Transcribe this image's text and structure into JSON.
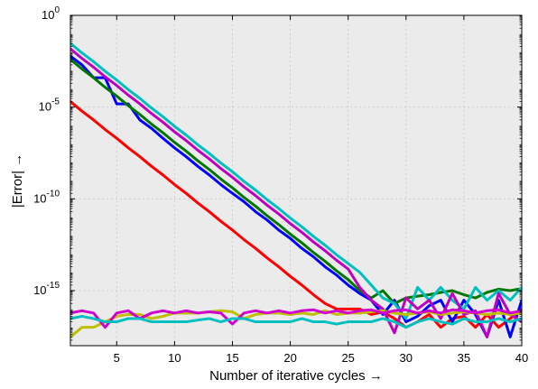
{
  "chart_data": {
    "type": "line",
    "title": "",
    "xlabel": "Number of iterative cycles →",
    "ylabel": "|Error| →",
    "xlim": [
      1,
      40
    ],
    "ylim": [
      1e-18,
      1
    ],
    "yscale": "log",
    "grid": true,
    "background": "#ebebeb",
    "x_ticks": [
      5,
      10,
      15,
      20,
      25,
      30,
      35,
      40
    ],
    "x_tick_labels": [
      "5",
      "10",
      "15",
      "20",
      "25",
      "30",
      "35",
      "40"
    ],
    "y_ticks": [
      1,
      1e-05,
      1e-10,
      1e-15
    ],
    "y_tick_labels": [
      {
        "base": "10",
        "exp": "0"
      },
      {
        "base": "10",
        "exp": "-5"
      },
      {
        "base": "10",
        "exp": "-10"
      },
      {
        "base": "10",
        "exp": "-15"
      }
    ],
    "x": [
      1,
      2,
      3,
      4,
      5,
      6,
      7,
      8,
      9,
      10,
      11,
      12,
      13,
      14,
      15,
      16,
      17,
      18,
      19,
      20,
      21,
      22,
      23,
      24,
      25,
      26,
      27,
      28,
      29,
      30,
      31,
      32,
      33,
      34,
      35,
      36,
      37,
      38,
      39,
      40
    ],
    "series": [
      {
        "color": "#ff0000",
        "values": [
          2e-05,
          6e-06,
          2e-06,
          6e-07,
          2e-07,
          6e-08,
          2e-08,
          6e-09,
          2e-09,
          6e-10,
          2e-10,
          6e-11,
          2e-11,
          6e-12,
          2e-12,
          6e-13,
          2e-13,
          6e-14,
          2e-14,
          6e-15,
          2e-15,
          6e-16,
          2e-16,
          1e-16,
          1e-16,
          1e-16,
          5e-17,
          7e-17,
          3e-17,
          1e-17,
          2e-17,
          5e-17,
          1e-17,
          3e-17,
          4e-17,
          1e-17,
          5e-17,
          1e-17,
          3e-17,
          1e-16
        ]
      },
      {
        "color": "#0000ff",
        "values": [
          0.006,
          0.002,
          0.0004,
          0.0004,
          1.5e-05,
          1.5e-05,
          2e-06,
          7e-07,
          2e-07,
          6e-08,
          2e-08,
          6e-09,
          2e-09,
          6e-10,
          2e-10,
          7e-11,
          2e-11,
          7e-12,
          2e-12,
          7e-13,
          2e-13,
          7e-14,
          2e-14,
          7e-15,
          2e-15,
          7e-16,
          3e-16,
          5e-17,
          3e-16,
          2e-17,
          4e-17,
          1.5e-16,
          3e-16,
          2e-17,
          3e-16,
          5e-17,
          3e-18,
          3e-16,
          3e-18,
          3e-16
        ]
      },
      {
        "color": "#007700",
        "values": [
          0.004,
          0.0012,
          0.0004,
          0.00012,
          4e-05,
          1.2e-05,
          4e-06,
          1.2e-06,
          4e-07,
          1.2e-07,
          4e-08,
          1.2e-08,
          4e-09,
          1.2e-09,
          4e-10,
          1.2e-10,
          4e-11,
          1.2e-11,
          4e-12,
          1.2e-12,
          4e-13,
          1.2e-13,
          4e-14,
          1.2e-14,
          4e-15,
          1e-15,
          4e-16,
          1e-15,
          2e-16,
          4e-16,
          5e-16,
          6e-16,
          8e-16,
          1e-15,
          6e-16,
          4e-16,
          8e-16,
          1.2e-15,
          1e-15,
          1.3e-15
        ]
      },
      {
        "color": "#00bfbf",
        "values": [
          0.03,
          0.009,
          0.003,
          0.0009,
          0.0003,
          9e-05,
          3e-05,
          9e-06,
          3e-06,
          9e-07,
          3e-07,
          9e-08,
          3e-08,
          9e-09,
          3e-09,
          9e-10,
          3e-10,
          9e-11,
          3e-11,
          9e-12,
          3e-12,
          9e-13,
          3e-13,
          9e-14,
          3e-14,
          1e-14,
          2e-15,
          4e-16,
          2e-16,
          3e-17,
          1.5e-15,
          3e-16,
          1.5e-15,
          3e-16,
          1e-16,
          1.5e-15,
          3e-16,
          1e-15,
          3e-16,
          1.5e-15
        ]
      },
      {
        "color": "#bf00bf",
        "values": [
          0.015,
          0.0045,
          0.0015,
          0.00045,
          0.00015,
          4.5e-05,
          1.5e-05,
          4.5e-06,
          1.5e-06,
          4.5e-07,
          1.5e-07,
          4.5e-08,
          1.5e-08,
          4.5e-09,
          1.5e-09,
          4.5e-10,
          1.5e-10,
          4.5e-11,
          1.5e-11,
          4.5e-12,
          1.5e-12,
          4.5e-13,
          1.5e-13,
          4.5e-14,
          1.5e-14,
          1.5e-15,
          3e-16,
          1e-16,
          5e-18,
          4e-16,
          1e-16,
          3e-16,
          3e-17,
          7e-16,
          5e-17,
          8e-17,
          3e-18,
          7e-16,
          5e-17,
          2e-17
        ]
      },
      {
        "color": "#bfbf00",
        "values": [
          3e-18,
          1e-17,
          1e-17,
          2e-17,
          4e-17,
          5e-17,
          5e-17,
          3e-17,
          4e-17,
          6e-17,
          6e-17,
          6e-17,
          7e-17,
          8e-17,
          7e-17,
          3e-17,
          5e-17,
          6e-17,
          6e-17,
          5e-17,
          6e-17,
          5e-17,
          8e-17,
          5e-17,
          6e-17,
          6e-17,
          7e-17,
          8e-17,
          6e-17,
          5e-17,
          6e-17,
          7e-17,
          5e-17,
          6e-17,
          7e-17,
          6e-17,
          5e-17,
          6e-17,
          5e-17,
          6e-17
        ]
      },
      {
        "color": "#d000d0",
        "values": [
          6e-17,
          8e-17,
          6e-17,
          1e-17,
          6e-17,
          8e-17,
          3e-17,
          6e-17,
          8e-17,
          6e-17,
          8e-17,
          6e-17,
          7e-17,
          6e-17,
          1.5e-17,
          6e-17,
          8e-17,
          6e-17,
          8e-17,
          6e-17,
          8e-17,
          9e-17,
          6e-17,
          8e-17,
          6e-17,
          8e-17,
          9e-17,
          6e-17,
          8e-17,
          9e-17,
          6e-17,
          8e-17,
          6e-17,
          9e-17,
          8e-17,
          6e-17,
          8e-17,
          9e-17,
          6e-17,
          8e-17
        ]
      },
      {
        "color": "#00bfbf",
        "values": [
          3e-17,
          4e-17,
          3e-17,
          2e-17,
          2e-17,
          3e-17,
          3e-17,
          2e-17,
          2e-17,
          2e-17,
          2e-17,
          2.5e-17,
          3e-17,
          2e-17,
          3e-17,
          3e-17,
          2e-17,
          2e-17,
          2e-17,
          2e-17,
          3e-17,
          2e-17,
          2e-17,
          1.5e-17,
          2e-17,
          2e-17,
          2e-17,
          3e-17,
          2e-17,
          1e-17,
          2e-17,
          3e-17,
          2e-17,
          1.5e-17,
          3e-17,
          2e-17,
          2e-17,
          3e-17,
          2e-17,
          3e-17
        ]
      }
    ]
  }
}
